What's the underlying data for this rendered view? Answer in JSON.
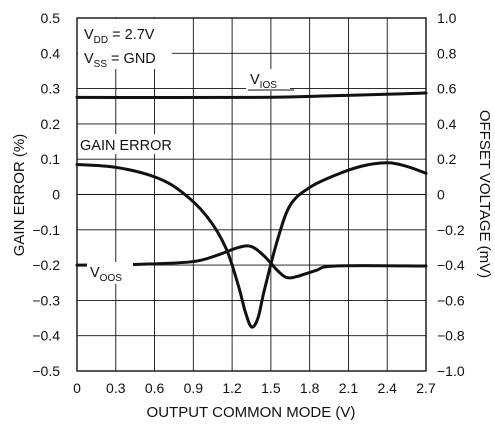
{
  "chart_data": {
    "type": "line",
    "xlabel": "OUTPUT COMMON MODE (V)",
    "ylabel_left": "GAIN ERROR (%)",
    "ylabel_right": "OFFSET VOLTAGE (mV)",
    "x_ticks": [
      "0",
      "0.3",
      "0.6",
      "0.9",
      "1.2",
      "1.5",
      "1.8",
      "2.1",
      "2.4",
      "2.7"
    ],
    "y_left_ticks": [
      "0.5",
      "0.4",
      "0.3",
      "0.2",
      "0.1",
      "0",
      "−0.1",
      "−0.2",
      "−0.3",
      "−0.4",
      "−0.5"
    ],
    "y_right_ticks": [
      "1.0",
      "0.8",
      "0.6",
      "0.4",
      "0.2",
      "0",
      "−0.2",
      "−0.4",
      "−0.6",
      "−0.8",
      "−1.0"
    ],
    "xlim": [
      0,
      2.7
    ],
    "ylim_left": [
      -0.5,
      0.5
    ],
    "ylim_right": [
      -1.0,
      1.0
    ],
    "grid": true,
    "conditions": {
      "vdd": {
        "main": "V",
        "sub": "DD",
        "rest": " = 2.7V"
      },
      "vss": {
        "main": "V",
        "sub": "SS",
        "rest": " = GND"
      }
    },
    "series": [
      {
        "name": "GAIN ERROR",
        "axis": "left",
        "points": [
          [
            0,
            0.085
          ],
          [
            0.3,
            0.077
          ],
          [
            0.6,
            0.05
          ],
          [
            0.8,
            0.01
          ],
          [
            1.0,
            -0.06
          ],
          [
            1.15,
            -0.15
          ],
          [
            1.25,
            -0.26
          ],
          [
            1.3,
            -0.33
          ],
          [
            1.35,
            -0.375
          ],
          [
            1.4,
            -0.35
          ],
          [
            1.45,
            -0.27
          ],
          [
            1.55,
            -0.13
          ],
          [
            1.65,
            -0.03
          ],
          [
            1.8,
            0.02
          ],
          [
            2.0,
            0.055
          ],
          [
            2.2,
            0.08
          ],
          [
            2.4,
            0.09
          ],
          [
            2.55,
            0.08
          ],
          [
            2.7,
            0.06
          ]
        ]
      },
      {
        "name_parts": {
          "main": "V",
          "sub": "OOS"
        },
        "axis": "right",
        "points": [
          [
            0,
            -0.4
          ],
          [
            0.5,
            -0.395
          ],
          [
            0.9,
            -0.38
          ],
          [
            1.1,
            -0.34
          ],
          [
            1.25,
            -0.3
          ],
          [
            1.35,
            -0.295
          ],
          [
            1.45,
            -0.35
          ],
          [
            1.55,
            -0.43
          ],
          [
            1.62,
            -0.47
          ],
          [
            1.7,
            -0.465
          ],
          [
            1.85,
            -0.43
          ],
          [
            2.0,
            -0.405
          ],
          [
            2.7,
            -0.405
          ]
        ]
      },
      {
        "name_parts": {
          "main": "V",
          "sub": "IOS"
        },
        "axis": "right",
        "points": [
          [
            0,
            0.55
          ],
          [
            1.4,
            0.55
          ],
          [
            2.0,
            0.56
          ],
          [
            2.5,
            0.57
          ],
          [
            2.7,
            0.575
          ]
        ]
      }
    ],
    "annotations": [
      {
        "text": "GAIN ERROR",
        "x": 0.02,
        "y_left": 0.12
      },
      {
        "series": "VOOS",
        "x": 0.12,
        "y_left": -0.18
      },
      {
        "series": "VIOS",
        "x": 1.25,
        "y_left": 0.32
      }
    ]
  }
}
